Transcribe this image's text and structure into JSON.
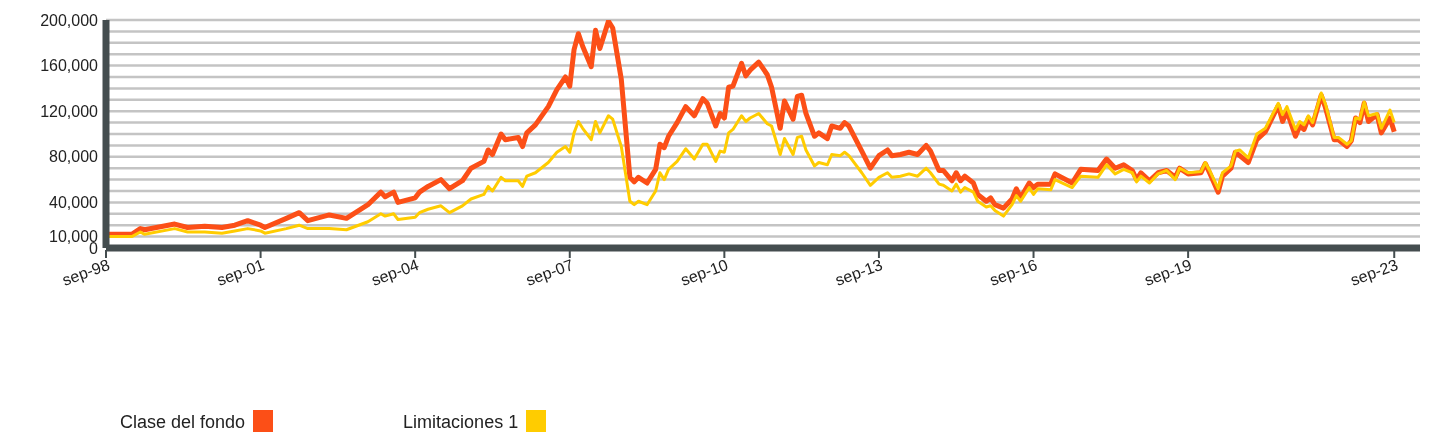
{
  "chart_data": {
    "type": "line",
    "x": [
      "1998-09",
      "1999-03",
      "1999-05",
      "1999-06",
      "2000-01",
      "2000-04",
      "2000-08",
      "2000-12",
      "2001-03",
      "2001-06",
      "2001-09",
      "2001-10",
      "2002-03",
      "2002-06",
      "2002-08",
      "2003-01",
      "2003-05",
      "2003-10",
      "2004-01",
      "2004-02",
      "2004-04",
      "2004-05",
      "2004-09",
      "2004-10",
      "2004-12",
      "2005-03",
      "2005-05",
      "2005-08",
      "2005-10",
      "2006-01",
      "2006-02",
      "2006-03",
      "2006-05",
      "2006-06",
      "2006-09",
      "2006-10",
      "2006-11",
      "2007-01",
      "2007-04",
      "2007-06",
      "2007-08",
      "2007-09",
      "2007-10",
      "2007-11",
      "2007-12",
      "2008-02",
      "2008-03",
      "2008-04",
      "2008-06",
      "2008-07",
      "2008-09",
      "2008-11",
      "2008-12",
      "2009-01",
      "2009-03",
      "2009-05",
      "2009-06",
      "2009-07",
      "2009-08",
      "2009-10",
      "2009-12",
      "2010-02",
      "2010-04",
      "2010-05",
      "2010-07",
      "2010-08",
      "2010-09",
      "2010-10",
      "2010-11",
      "2011-01",
      "2011-02",
      "2011-03",
      "2011-05",
      "2011-07",
      "2011-08",
      "2011-10",
      "2011-11",
      "2012-01",
      "2012-02",
      "2012-03",
      "2012-04",
      "2012-06",
      "2012-07",
      "2012-09",
      "2012-10",
      "2012-12",
      "2013-01",
      "2013-02",
      "2013-05",
      "2013-07",
      "2013-09",
      "2013-11",
      "2013-12",
      "2014-02",
      "2014-04",
      "2014-06",
      "2014-08",
      "2014-09",
      "2014-11",
      "2014-12",
      "2015-02",
      "2015-03",
      "2015-04",
      "2015-05",
      "2015-07",
      "2015-08",
      "2015-10",
      "2015-11",
      "2015-12",
      "2016-02",
      "2016-04",
      "2016-05",
      "2016-06",
      "2016-08",
      "2016-09",
      "2016-10",
      "2017-01",
      "2017-02",
      "2017-06",
      "2017-08",
      "2017-12",
      "2018-02",
      "2018-04",
      "2018-06",
      "2018-08",
      "2018-09",
      "2018-10",
      "2018-12",
      "2019-02",
      "2019-04",
      "2019-06",
      "2019-07",
      "2019-09",
      "2019-12",
      "2020-01",
      "2020-02",
      "2020-04",
      "2020-05",
      "2020-07",
      "2020-08",
      "2020-09",
      "2020-11",
      "2021-01",
      "2021-03",
      "2021-06",
      "2021-07",
      "2021-08",
      "2021-10",
      "2021-11",
      "2021-12",
      "2022-01",
      "2022-02",
      "2022-04",
      "2022-05",
      "2022-07",
      "2022-08",
      "2022-10",
      "2022-11",
      "2022-12",
      "2023-01",
      "2023-02",
      "2023-03",
      "2023-05",
      "2023-06",
      "2023-08",
      "2023-09"
    ],
    "series": [
      {
        "name": "Clase del fondo",
        "color": "#fc4f17",
        "values": [
          12000,
          12000,
          17000,
          16000,
          21000,
          18000,
          19000,
          18000,
          20000,
          24000,
          20000,
          18000,
          26000,
          31000,
          24000,
          29000,
          26000,
          38000,
          49000,
          45000,
          49000,
          40000,
          44000,
          49000,
          54000,
          60000,
          52000,
          59000,
          70000,
          76000,
          86000,
          82000,
          100000,
          95000,
          97000,
          89000,
          101000,
          108000,
          124000,
          139000,
          150000,
          142000,
          174000,
          188000,
          177000,
          159000,
          191000,
          175000,
          199000,
          193000,
          148000,
          62000,
          58000,
          62000,
          57000,
          69000,
          91000,
          88000,
          98000,
          110000,
          124000,
          116000,
          131000,
          127000,
          107000,
          118000,
          114000,
          141000,
          142000,
          162000,
          151000,
          156000,
          163000,
          152000,
          141000,
          105000,
          129000,
          113000,
          133000,
          134000,
          118000,
          98000,
          101000,
          96000,
          107000,
          105000,
          110000,
          107000,
          85000,
          70000,
          81000,
          86000,
          81000,
          82000,
          84000,
          82000,
          90000,
          85000,
          68000,
          68000,
          59000,
          66000,
          59000,
          63000,
          57000,
          47000,
          41000,
          44000,
          38000,
          35000,
          43000,
          52000,
          44000,
          57000,
          53000,
          56000,
          56000,
          65000,
          57000,
          69000,
          68000,
          78000,
          70000,
          73000,
          68000,
          60000,
          66000,
          59000,
          66000,
          68000,
          62000,
          70000,
          65000,
          66000,
          74000,
          66000,
          49000,
          63000,
          70000,
          84000,
          81000,
          75000,
          95000,
          102000,
          125000,
          111000,
          120000,
          98000,
          107000,
          104000,
          114000,
          108000,
          134000,
          123000,
          95000,
          95000,
          89000,
          94000,
          114000,
          110000,
          127000,
          111000,
          117000,
          101000,
          114000,
          102000
        ]
      },
      {
        "name": "Limitaciones 1",
        "color": "#ffcc00",
        "values": [
          10000,
          10000,
          14000,
          12000,
          17000,
          14000,
          14000,
          13000,
          15000,
          17000,
          15000,
          13000,
          17000,
          20000,
          17000,
          17000,
          16000,
          23000,
          30000,
          28000,
          30000,
          25000,
          27000,
          31000,
          34000,
          37000,
          31000,
          37000,
          43000,
          47000,
          54000,
          50000,
          62000,
          59000,
          59000,
          54000,
          63000,
          66000,
          75000,
          84000,
          89000,
          84000,
          101000,
          111000,
          105000,
          95000,
          111000,
          101000,
          116000,
          113000,
          89000,
          41000,
          38000,
          41000,
          38000,
          50000,
          66000,
          60000,
          69000,
          76000,
          87000,
          78000,
          91000,
          91000,
          76000,
          85000,
          84000,
          101000,
          104000,
          116000,
          111000,
          114000,
          118000,
          109000,
          107000,
          82000,
          96000,
          82000,
          97000,
          98000,
          86000,
          72000,
          75000,
          73000,
          82000,
          81000,
          84000,
          81000,
          66000,
          55000,
          62000,
          66000,
          62000,
          63000,
          65000,
          63000,
          70000,
          66000,
          56000,
          55000,
          50000,
          56000,
          49000,
          53000,
          49000,
          41000,
          36000,
          37000,
          33000,
          28000,
          38000,
          46000,
          41000,
          53000,
          47000,
          52000,
          51000,
          60000,
          53000,
          63000,
          62000,
          73000,
          65000,
          69000,
          66000,
          58000,
          63000,
          57000,
          65000,
          68000,
          60000,
          70000,
          66000,
          67000,
          75000,
          68000,
          52000,
          66000,
          72000,
          85000,
          86000,
          79000,
          100000,
          105000,
          127000,
          117000,
          124000,
          104000,
          111000,
          108000,
          116000,
          110000,
          136000,
          126000,
          97000,
          97000,
          91000,
          94000,
          114000,
          113000,
          128000,
          116000,
          118000,
          105000,
          121000,
          110000
        ]
      }
    ],
    "xlim": [
      "1998-09",
      "2024-03"
    ],
    "xticks": [
      {
        "value": "1998-09",
        "label": "sep-98"
      },
      {
        "value": "2001-09",
        "label": "sep-01"
      },
      {
        "value": "2004-09",
        "label": "sep-04"
      },
      {
        "value": "2007-09",
        "label": "sep-07"
      },
      {
        "value": "2010-09",
        "label": "sep-10"
      },
      {
        "value": "2013-09",
        "label": "sep-13"
      },
      {
        "value": "2016-09",
        "label": "sep-16"
      },
      {
        "value": "2019-09",
        "label": "sep-19"
      },
      {
        "value": "2023-09",
        "label": "sep-23"
      }
    ],
    "ylim": [
      0,
      200000
    ],
    "yticks": [
      0,
      {
        "value": 10000,
        "label": "10,000"
      },
      {
        "value": 20000,
        "label": null
      },
      {
        "value": 30000,
        "label": null
      },
      {
        "value": 40000,
        "label": "40,000"
      },
      {
        "value": 50000,
        "label": null
      },
      {
        "value": 60000,
        "label": null
      },
      {
        "value": 70000,
        "label": null
      },
      {
        "value": 80000,
        "label": "80,000"
      },
      {
        "value": 90000,
        "label": null
      },
      {
        "value": 100000,
        "label": null
      },
      {
        "value": 110000,
        "label": null
      },
      {
        "value": 120000,
        "label": "120,000"
      },
      {
        "value": 130000,
        "label": null
      },
      {
        "value": 140000,
        "label": null
      },
      {
        "value": 150000,
        "label": null
      },
      {
        "value": 160000,
        "label": "160,000"
      },
      {
        "value": 170000,
        "label": null
      },
      {
        "value": 180000,
        "label": null
      },
      {
        "value": 190000,
        "label": null
      },
      {
        "value": 200000,
        "label": "200,000"
      }
    ],
    "grid": "y",
    "legend": "bottom left",
    "marker": "none",
    "line_style": "solid"
  }
}
